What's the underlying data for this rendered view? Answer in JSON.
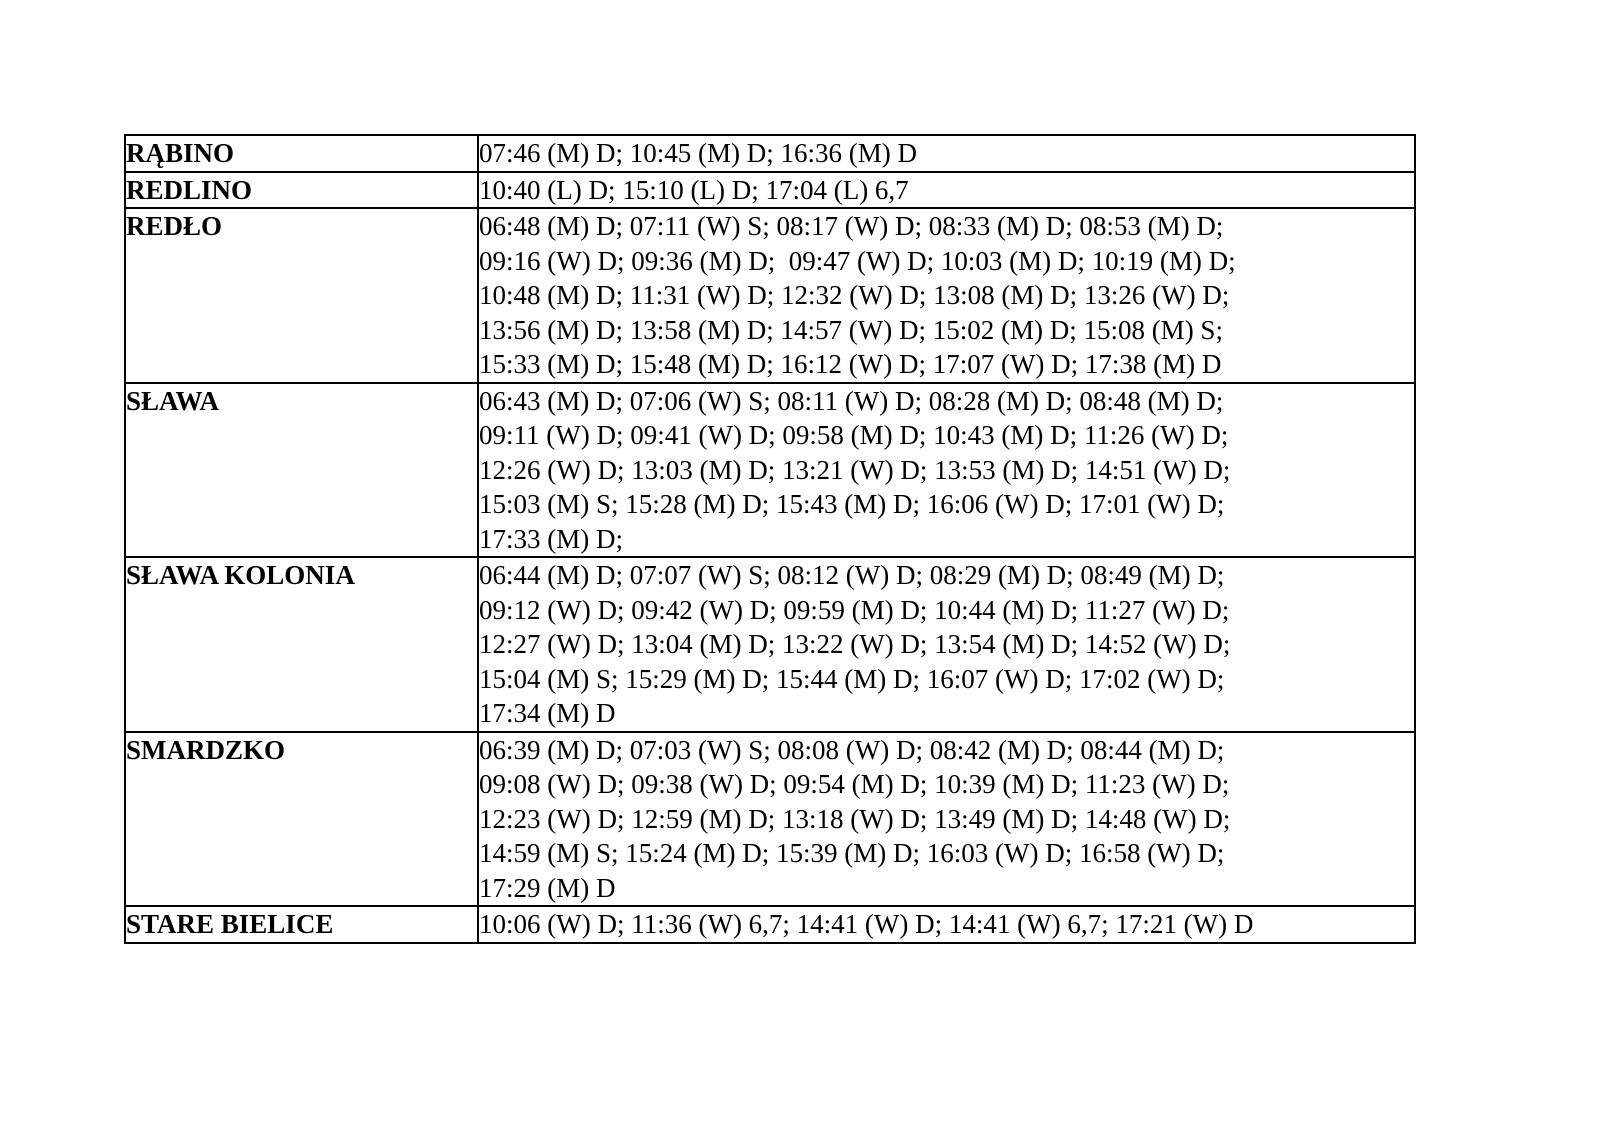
{
  "document": {
    "background": "#ffffff",
    "border_color": "#000000",
    "text_color": "#000000"
  },
  "table": {
    "rows": [
      {
        "name": "RĄBINO",
        "lines": [
          "07:46 (M) D; 10:45 (M) D; 16:36 (M) D"
        ]
      },
      {
        "name": "REDLINO",
        "lines": [
          "10:40 (L) D; 15:10 (L) D; 17:04 (L) 6,7"
        ]
      },
      {
        "name": "REDŁO",
        "lines": [
          "06:48 (M) D; 07:11 (W) S; 08:17 (W) D; 08:33 (M) D; 08:53 (M) D;",
          "09:16 (W) D; 09:36 (M) D;  09:47 (W) D; 10:03 (M) D; 10:19 (M) D;",
          "10:48 (M) D; 11:31 (W) D; 12:32 (W) D; 13:08 (M) D; 13:26 (W) D;",
          "13:56 (M) D; 13:58 (M) D; 14:57 (W) D; 15:02 (M) D; 15:08 (M) S;",
          "15:33 (M) D; 15:48 (M) D; 16:12 (W) D; 17:07 (W) D; 17:38 (M) D"
        ]
      },
      {
        "name": "SŁAWA",
        "lines": [
          "06:43 (M) D; 07:06 (W) S; 08:11 (W) D; 08:28 (M) D; 08:48 (M) D;",
          "09:11 (W) D; 09:41 (W) D; 09:58 (M) D; 10:43 (M) D; 11:26 (W) D;",
          "12:26 (W) D; 13:03 (M) D; 13:21 (W) D; 13:53 (M) D; 14:51 (W) D;",
          "15:03 (M) S; 15:28 (M) D; 15:43 (M) D; 16:06 (W) D; 17:01 (W) D;",
          "17:33 (M) D;"
        ]
      },
      {
        "name": "SŁAWA KOLONIA",
        "lines": [
          "06:44 (M) D; 07:07 (W) S; 08:12 (W) D; 08:29 (M) D; 08:49 (M) D;",
          "09:12 (W) D; 09:42 (W) D; 09:59 (M) D; 10:44 (M) D; 11:27 (W) D;",
          "12:27 (W) D; 13:04 (M) D; 13:22 (W) D; 13:54 (M) D; 14:52 (W) D;",
          "15:04 (M) S; 15:29 (M) D; 15:44 (M) D; 16:07 (W) D; 17:02 (W) D;",
          "17:34 (M) D"
        ]
      },
      {
        "name": "SMARDZKO",
        "lines": [
          "06:39 (M) D; 07:03 (W) S; 08:08 (W) D; 08:42 (M) D; 08:44 (M) D;",
          "09:08 (W) D; 09:38 (W) D; 09:54 (M) D; 10:39 (M) D; 11:23 (W) D;",
          "12:23 (W) D; 12:59 (M) D; 13:18 (W) D; 13:49 (M) D; 14:48 (W) D;",
          "14:59 (M) S; 15:24 (M) D; 15:39 (M) D; 16:03 (W) D; 16:58 (W) D;",
          "17:29 (M) D"
        ]
      },
      {
        "name": "STARE BIELICE",
        "lines": [
          "10:06 (W) D; 11:36 (W) 6,7; 14:41 (W) D; 14:41 (W) 6,7; 17:21 (W) D"
        ]
      }
    ]
  }
}
